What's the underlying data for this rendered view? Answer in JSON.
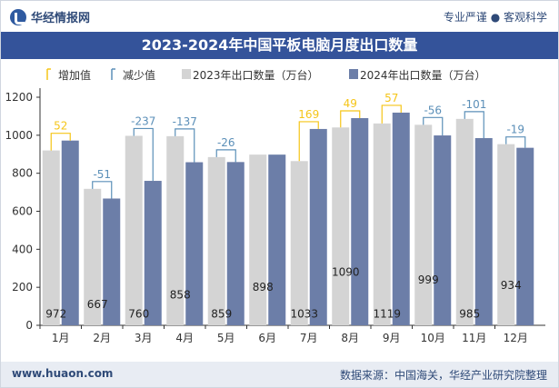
{
  "header": {
    "brand": "华经情报网",
    "tags": "专业严谨 ● 客观科学"
  },
  "footer": {
    "site": "www.huaon.com",
    "source": "数据来源：中国海关，华经产业研究院整理"
  },
  "colors": {
    "bar2023": "#d4d4d4",
    "bar2024": "#6c7ea8",
    "increase": "#f5c518",
    "decrease": "#5b8fb8",
    "title_bg": "#34539a"
  },
  "chart_data": {
    "type": "bar",
    "title": "2023-2024年中国平板电脑月度出口数量",
    "categories": [
      "1月",
      "2月",
      "3月",
      "4月",
      "5月",
      "6月",
      "7月",
      "8月",
      "9月",
      "10月",
      "11月",
      "12月"
    ],
    "series": [
      {
        "name": "2023年出口数量（万台）",
        "values": [
          920,
          718,
          997,
          995,
          885,
          898,
          864,
          1041,
          1062,
          1055,
          1086,
          953
        ]
      },
      {
        "name": "2024年出口数量（万台）",
        "values": [
          972,
          667,
          760,
          858,
          859,
          898,
          1033,
          1090,
          1119,
          999,
          985,
          934
        ]
      }
    ],
    "diff_labels": [
      "52",
      "-51",
      "-237",
      "-137",
      "-26",
      "",
      "169",
      "49",
      "57",
      "-56",
      "-101",
      "-19"
    ],
    "value_labels": [
      "972",
      "667",
      "760",
      "858",
      "859",
      "898",
      "1033",
      "1090",
      "1119",
      "999",
      "985",
      "934"
    ],
    "legend": [
      "增加值",
      "减少值",
      "2023年出口数量（万台）",
      "2024年出口数量（万台）"
    ],
    "legend_placement": "top",
    "ylim": [
      0,
      1200
    ],
    "yticks": [
      "0",
      "200",
      "400",
      "600",
      "800",
      "1000",
      "1200"
    ],
    "xlabel": "",
    "ylabel": "",
    "grid": false
  }
}
